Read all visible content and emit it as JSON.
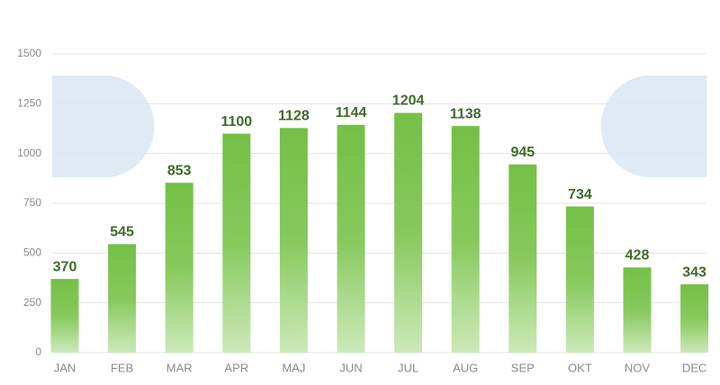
{
  "chart_data": {
    "type": "bar",
    "categories": [
      "JAN",
      "FEB",
      "MAR",
      "APR",
      "MAJ",
      "JUN",
      "JUL",
      "AUG",
      "SEP",
      "OKT",
      "NOV",
      "DEC"
    ],
    "values": [
      370,
      545,
      853,
      1100,
      1128,
      1144,
      1204,
      1138,
      945,
      734,
      428,
      343
    ],
    "color": "#74c046",
    "ylim": [
      0,
      1500
    ],
    "yticks": [
      0,
      250,
      500,
      750,
      1000,
      1250,
      1500
    ],
    "grid": true
  }
}
